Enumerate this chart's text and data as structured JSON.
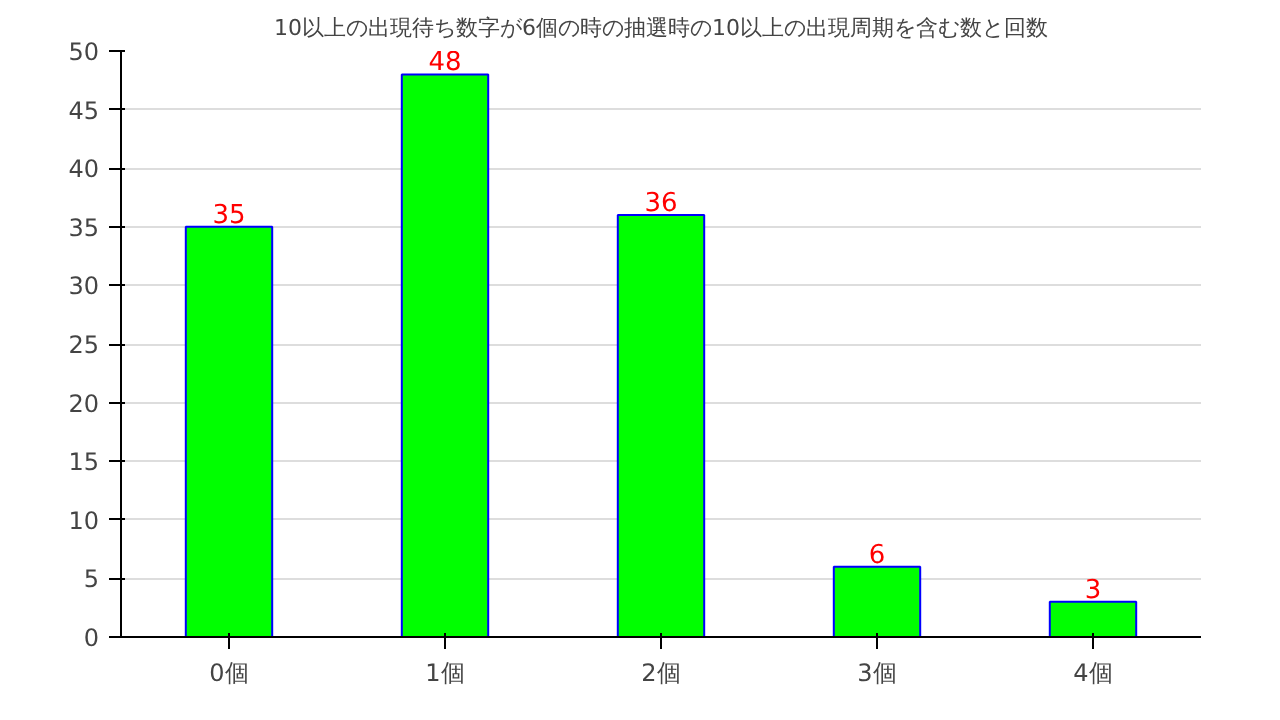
{
  "chart_data": {
    "type": "bar",
    "title": "10以上の出現待ち数字が6個の時の抽選時の10以上の出現周期を含む数と回数",
    "categories": [
      "0個",
      "1個",
      "2個",
      "3個",
      "4個"
    ],
    "values": [
      35,
      48,
      36,
      6,
      3
    ],
    "color": "#00ff00",
    "ylim": [
      0,
      50
    ],
    "yticks": [
      0,
      5,
      10,
      15,
      20,
      25,
      30,
      35,
      40,
      45,
      50
    ],
    "grid": "y",
    "data_labels": true
  }
}
